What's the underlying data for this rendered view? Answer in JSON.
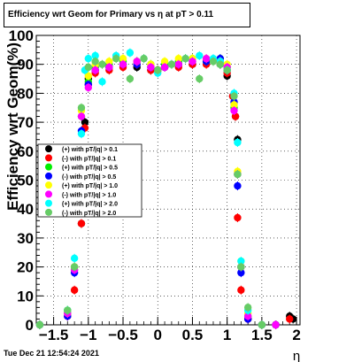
{
  "chart_data": {
    "type": "scatter",
    "title": "Efficiency wrt Geom for Primary vs   η at pT > 0.11",
    "xlabel": "η",
    "ylabel": "Efficiency wrt Geom(%)",
    "xlim": [
      -1.75,
      2.05
    ],
    "ylim": [
      0,
      100
    ],
    "xticks": [
      -1.5,
      -1,
      -0.5,
      0,
      0.5,
      1,
      1.5,
      2
    ],
    "xtick_labels": [
      "−1.5",
      "−1",
      "−0.5",
      "0",
      "0.5",
      "1",
      "1.5",
      "2"
    ],
    "yticks": [
      0,
      10,
      20,
      30,
      40,
      50,
      60,
      70,
      80,
      90,
      100
    ],
    "yticks_labels": [
      "0",
      "10",
      "20",
      "30",
      "40",
      "50",
      "60",
      "70",
      "80",
      "90",
      "100"
    ],
    "grid": true,
    "legend_position": "left-middle",
    "series": [
      {
        "name": "(+) with pT/|q| > 0.1",
        "color": "#000000",
        "x": [
          -1.7,
          -1.3,
          -1.2,
          -1.1,
          -1.05,
          -1.0,
          -0.9,
          -0.7,
          -0.5,
          -0.3,
          -0.1,
          0.0,
          0.1,
          0.3,
          0.5,
          0.7,
          0.9,
          1.0,
          1.08,
          1.12,
          1.15,
          1.2,
          1.3,
          1.5,
          1.7,
          1.9,
          1.95
        ],
        "y": [
          0,
          4,
          20,
          35,
          70,
          85,
          88,
          89,
          90,
          89,
          88,
          88,
          89,
          90,
          90,
          91,
          90,
          86,
          79,
          72,
          64,
          20,
          2,
          0,
          0,
          3,
          2
        ]
      },
      {
        "name": "(-) with pT/|q| > 0.1",
        "color": "#ff0000",
        "x": [
          -1.7,
          -1.3,
          -1.2,
          -1.1,
          -1.05,
          -1.0,
          -0.9,
          -0.7,
          -0.5,
          -0.3,
          -0.1,
          0.0,
          0.1,
          0.3,
          0.5,
          0.7,
          0.9,
          1.0,
          1.08,
          1.12,
          1.15,
          1.2,
          1.3,
          1.5,
          1.7,
          1.9
        ],
        "y": [
          0,
          3,
          12,
          35,
          68,
          83,
          87,
          88,
          89,
          90,
          88,
          88,
          89,
          89,
          90,
          90,
          91,
          87,
          79,
          72,
          37,
          12,
          2,
          0,
          0,
          2
        ]
      },
      {
        "name": "(+) with pT/|q| > 0.5",
        "color": "#00ee00",
        "x": [
          -1.7,
          -1.3,
          -1.2,
          -1.1,
          -1.0,
          -0.9,
          -0.7,
          -0.5,
          -0.3,
          -0.1,
          0.1,
          0.3,
          0.5,
          0.7,
          0.9,
          1.0,
          1.1,
          1.15,
          1.2,
          1.3,
          1.5,
          1.7
        ],
        "y": [
          0,
          5,
          19,
          72,
          84,
          89,
          90,
          91,
          91,
          90,
          90,
          91,
          92,
          91,
          92,
          89,
          75,
          52,
          20,
          3,
          0,
          0
        ]
      },
      {
        "name": "(-) with pT/|q| > 0.5",
        "color": "#0000ff",
        "x": [
          -1.7,
          -1.3,
          -1.2,
          -1.1,
          -1.0,
          -0.9,
          -0.7,
          -0.5,
          -0.3,
          -0.1,
          0.1,
          0.3,
          0.5,
          0.7,
          0.9,
          1.0,
          1.1,
          1.15,
          1.2,
          1.3,
          1.5,
          1.7
        ],
        "y": [
          0,
          3,
          18,
          67,
          83,
          88,
          89,
          90,
          90,
          89,
          89,
          90,
          91,
          91,
          92,
          88,
          77,
          48,
          18,
          2,
          0,
          0
        ]
      },
      {
        "name": "(+) with pT/|q| > 1.0",
        "color": "#ffff00",
        "x": [
          -1.7,
          -1.3,
          -1.2,
          -1.1,
          -1.0,
          -0.9,
          -0.7,
          -0.5,
          -0.3,
          -0.1,
          0.1,
          0.3,
          0.5,
          0.7,
          0.9,
          1.0,
          1.1,
          1.15,
          1.2,
          1.3,
          1.5
        ],
        "y": [
          0,
          4,
          20,
          74,
          86,
          90,
          91,
          92,
          91,
          90,
          91,
          92,
          92,
          92,
          91,
          90,
          76,
          53,
          22,
          4,
          0
        ]
      },
      {
        "name": "(-) with pT/|q| > 1.0",
        "color": "#ff00ff",
        "x": [
          -1.7,
          -1.3,
          -1.2,
          -1.1,
          -1.0,
          -0.9,
          -0.7,
          -0.5,
          -0.3,
          -0.1,
          0.1,
          0.3,
          0.5,
          0.7,
          0.9,
          1.0,
          1.1,
          1.15,
          1.2,
          1.3,
          1.5,
          1.7
        ],
        "y": [
          0,
          4,
          19,
          72,
          82,
          88,
          89,
          90,
          91,
          89,
          89,
          90,
          91,
          92,
          91,
          89,
          74,
          52,
          20,
          3,
          0,
          0
        ]
      },
      {
        "name": "(+) with pT/|q| > 2.0",
        "color": "#00ffff",
        "x": [
          -1.7,
          -1.3,
          -1.2,
          -1.1,
          -1.05,
          -1.0,
          -0.9,
          -0.8,
          -0.6,
          -0.4,
          -0.2,
          0.0,
          0.2,
          0.4,
          0.6,
          0.8,
          0.9,
          1.0,
          1.1,
          1.15,
          1.2,
          1.3,
          1.5
        ],
        "y": [
          0,
          5,
          23,
          66,
          88,
          92,
          93,
          84,
          93,
          94,
          92,
          87,
          90,
          92,
          93,
          92,
          91,
          88,
          80,
          63,
          22,
          5,
          0
        ]
      },
      {
        "name": "(-) with pT/|q| > 2.0",
        "color": "#66cc66",
        "x": [
          -1.7,
          -1.3,
          -1.2,
          -1.1,
          -1.0,
          -0.9,
          -0.8,
          -0.6,
          -0.4,
          -0.2,
          0.0,
          0.2,
          0.4,
          0.6,
          0.8,
          0.9,
          1.0,
          1.1,
          1.15,
          1.2,
          1.3,
          1.5
        ],
        "y": [
          0,
          5,
          20,
          75,
          89,
          91,
          90,
          92,
          85,
          92,
          88,
          90,
          92,
          85,
          91,
          90,
          88,
          79,
          52,
          20,
          6,
          0
        ]
      }
    ]
  },
  "footer": {
    "timestamp": "Tue Dec 21 12:54:24 2021"
  }
}
